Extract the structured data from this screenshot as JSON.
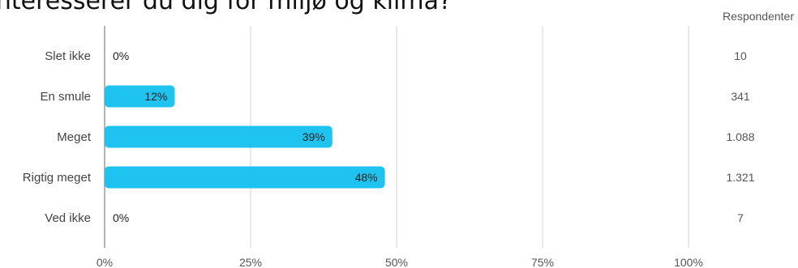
{
  "title": "Interesserer du dig for miljø og klima?",
  "respondents_header": "Respondenter",
  "colors": {
    "bar": "#1fc3f0",
    "grid": "#d0d0d0",
    "axis": "#9a9a9a"
  },
  "chart_data": {
    "type": "bar",
    "orientation": "horizontal",
    "title": "Interesserer du dig for miljø og klima?",
    "categories": [
      "Slet ikke",
      "En smule",
      "Meget",
      "Rigtig meget",
      "Ved ikke"
    ],
    "values": [
      0,
      12,
      39,
      48,
      0
    ],
    "value_labels": [
      "0%",
      "12%",
      "39%",
      "48%",
      "0%"
    ],
    "respondents": [
      "10",
      "341",
      "1.088",
      "1.321",
      "7"
    ],
    "xlim": [
      0,
      100
    ],
    "ticks": [
      0,
      25,
      50,
      75,
      100
    ],
    "tick_labels": [
      "0%",
      "25%",
      "50%",
      "75%",
      "100%"
    ],
    "grid": true,
    "xlabel": "",
    "ylabel": ""
  }
}
